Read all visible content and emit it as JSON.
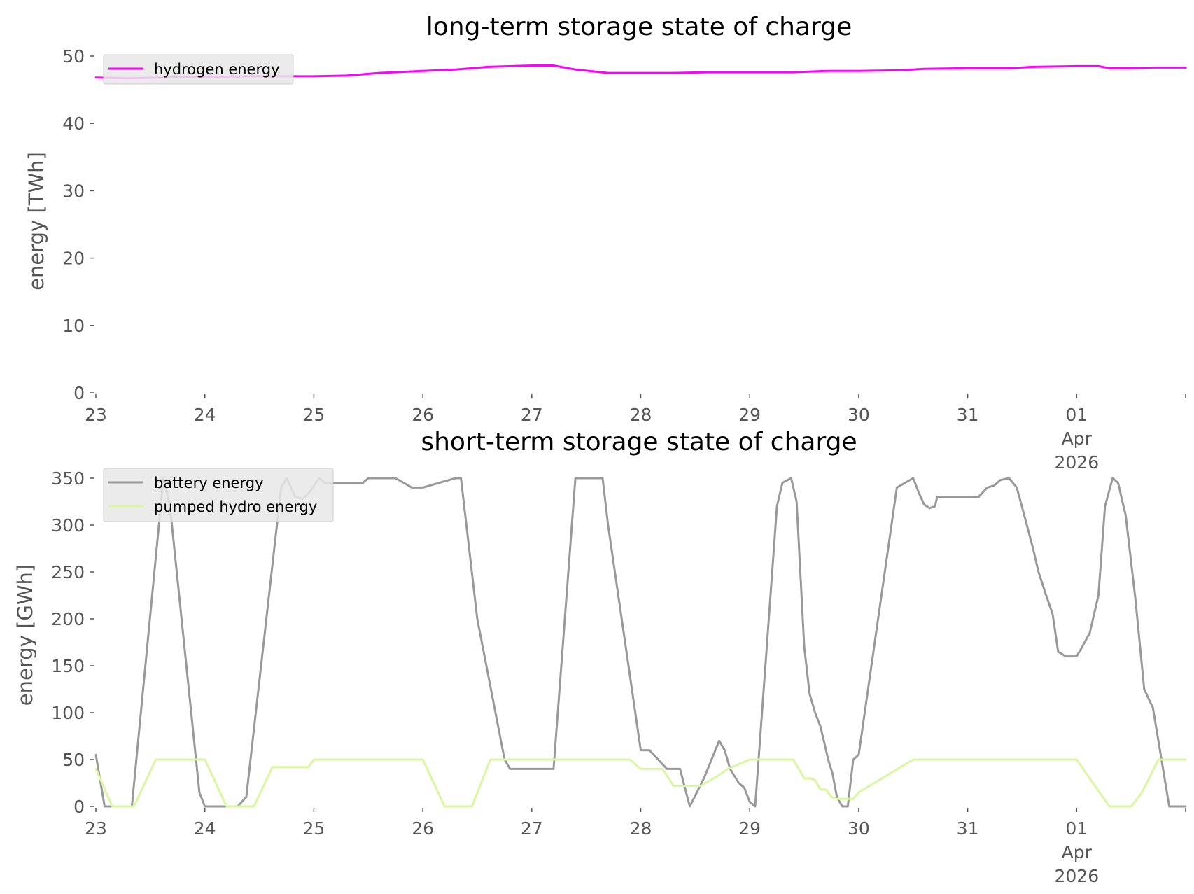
{
  "chart_data": [
    {
      "type": "line",
      "title": "long-term storage state of charge",
      "xlabel": "",
      "ylabel": "energy [TWh]",
      "ylim": [
        0,
        50
      ],
      "yticks": [
        "0",
        "10",
        "20",
        "30",
        "40",
        "50"
      ],
      "x_range": [
        "2026-03-23",
        "2026-04-02"
      ],
      "xticks": [
        {
          "day": 0,
          "label": "23",
          "sub": [
            "",
            ""
          ]
        },
        {
          "day": 1,
          "label": "24",
          "sub": [
            "",
            ""
          ]
        },
        {
          "day": 2,
          "label": "25",
          "sub": [
            "",
            ""
          ]
        },
        {
          "day": 3,
          "label": "26",
          "sub": [
            "",
            ""
          ]
        },
        {
          "day": 4,
          "label": "27",
          "sub": [
            "",
            ""
          ]
        },
        {
          "day": 5,
          "label": "28",
          "sub": [
            "",
            ""
          ]
        },
        {
          "day": 6,
          "label": "29",
          "sub": [
            "",
            ""
          ]
        },
        {
          "day": 7,
          "label": "30",
          "sub": [
            "",
            ""
          ]
        },
        {
          "day": 8,
          "label": "31",
          "sub": [
            "",
            ""
          ]
        },
        {
          "day": 9,
          "label": "01",
          "sub": [
            "Apr",
            "2026"
          ]
        },
        {
          "day": 10,
          "label": "",
          "sub": [
            "",
            ""
          ]
        }
      ],
      "grid": false,
      "legend_position": "top-left",
      "series": [
        {
          "name": "hydrogen energy",
          "color": "#ff00ff",
          "x": [
            0,
            0.3,
            0.6,
            1.0,
            1.5,
            2.0,
            2.3,
            2.6,
            3.0,
            3.3,
            3.6,
            4.0,
            4.2,
            4.4,
            4.7,
            5.0,
            5.3,
            5.6,
            6.0,
            6.4,
            6.7,
            7.0,
            7.4,
            7.6,
            8.0,
            8.4,
            8.6,
            9.0,
            9.2,
            9.3,
            9.5,
            9.7,
            10.0
          ],
          "y": [
            46.8,
            46.7,
            46.8,
            46.9,
            47.0,
            47.0,
            47.1,
            47.5,
            47.8,
            48.0,
            48.4,
            48.6,
            48.6,
            48.0,
            47.5,
            47.5,
            47.5,
            47.6,
            47.6,
            47.6,
            47.8,
            47.8,
            47.9,
            48.1,
            48.2,
            48.2,
            48.4,
            48.5,
            48.5,
            48.2,
            48.2,
            48.3,
            48.3
          ]
        }
      ]
    },
    {
      "type": "line",
      "title": "short-term storage state of charge",
      "xlabel": "",
      "ylabel": "energy [GWh]",
      "ylim": [
        0,
        350
      ],
      "yticks": [
        "0",
        "50",
        "100",
        "150",
        "200",
        "250",
        "300",
        "350"
      ],
      "x_range": [
        "2026-03-23",
        "2026-04-02"
      ],
      "xticks": [
        {
          "day": 0,
          "label": "23",
          "sub": [
            "",
            ""
          ]
        },
        {
          "day": 1,
          "label": "24",
          "sub": [
            "",
            ""
          ]
        },
        {
          "day": 2,
          "label": "25",
          "sub": [
            "",
            ""
          ]
        },
        {
          "day": 3,
          "label": "26",
          "sub": [
            "",
            ""
          ]
        },
        {
          "day": 4,
          "label": "27",
          "sub": [
            "",
            ""
          ]
        },
        {
          "day": 5,
          "label": "28",
          "sub": [
            "",
            ""
          ]
        },
        {
          "day": 6,
          "label": "29",
          "sub": [
            "",
            ""
          ]
        },
        {
          "day": 7,
          "label": "30",
          "sub": [
            "",
            ""
          ]
        },
        {
          "day": 8,
          "label": "31",
          "sub": [
            "",
            ""
          ]
        },
        {
          "day": 9,
          "label": "01",
          "sub": [
            "Apr",
            "2026"
          ]
        },
        {
          "day": 10,
          "label": "",
          "sub": [
            "",
            ""
          ]
        }
      ],
      "grid": false,
      "legend_position": "top-left",
      "series": [
        {
          "name": "battery energy",
          "color": "#999999",
          "x": [
            0,
            0.08,
            0.33,
            0.62,
            0.68,
            0.95,
            1.0,
            1.3,
            1.38,
            1.7,
            1.75,
            1.83,
            1.9,
            1.96,
            2.05,
            2.1,
            2.15,
            2.3,
            2.45,
            2.5,
            2.55,
            2.75,
            2.9,
            3.0,
            3.3,
            3.35,
            3.5,
            3.75,
            3.8,
            4.0,
            4.2,
            4.4,
            4.45,
            4.5,
            4.55,
            4.6,
            4.65,
            4.7,
            5.0,
            5.08,
            5.24,
            5.3,
            5.36,
            5.45,
            5.58,
            5.65,
            5.72,
            5.77,
            5.82,
            5.9,
            5.95,
            6.0,
            6.05,
            6.15,
            6.25,
            6.3,
            6.38,
            6.43,
            6.5,
            6.55,
            6.6,
            6.65,
            6.68,
            6.72,
            6.76,
            6.8,
            6.85,
            6.9,
            6.95,
            7.0,
            7.35,
            7.5,
            7.55,
            7.6,
            7.65,
            7.7,
            7.72,
            7.78,
            7.83,
            7.88,
            7.93,
            8.0,
            8.1,
            8.18,
            8.24,
            8.3,
            8.38,
            8.45,
            8.52,
            8.6,
            8.65,
            8.72,
            8.78,
            8.83,
            8.9,
            9.0,
            9.05,
            9.12,
            9.2,
            9.26,
            9.33,
            9.38,
            9.45,
            9.54,
            9.62,
            9.7,
            9.85,
            10.0
          ],
          "y": [
            55,
            0,
            0,
            350,
            320,
            15,
            0,
            0,
            10,
            340,
            350,
            330,
            328,
            335,
            350,
            345,
            345,
            345,
            345,
            350,
            350,
            350,
            340,
            340,
            350,
            350,
            200,
            50,
            40,
            40,
            40,
            350,
            350,
            350,
            350,
            350,
            350,
            300,
            60,
            60,
            40,
            40,
            40,
            0,
            30,
            50,
            70,
            60,
            40,
            25,
            20,
            5,
            0,
            160,
            320,
            345,
            350,
            325,
            170,
            120,
            100,
            85,
            70,
            50,
            35,
            10,
            0,
            0,
            50,
            55,
            340,
            350,
            335,
            322,
            318,
            320,
            330,
            330,
            330,
            330,
            330,
            330,
            330,
            340,
            342,
            348,
            350,
            340,
            310,
            275,
            250,
            225,
            205,
            165,
            160,
            160,
            170,
            185,
            225,
            320,
            350,
            345,
            310,
            220,
            125,
            105,
            0,
            0
          ]
        },
        {
          "name": "pumped hydro energy",
          "color": "#d9f7a0",
          "x": [
            0,
            0.15,
            0.35,
            0.55,
            0.65,
            1.0,
            1.2,
            1.45,
            1.62,
            1.8,
            1.95,
            2.0,
            2.4,
            3.0,
            3.2,
            3.45,
            3.62,
            3.75,
            4.0,
            4.6,
            4.9,
            5.0,
            5.2,
            5.3,
            5.55,
            5.7,
            5.8,
            6.0,
            6.1,
            6.3,
            6.4,
            6.45,
            6.5,
            6.55,
            6.6,
            6.65,
            6.7,
            6.75,
            6.8,
            6.95,
            7.0,
            7.5,
            8.0,
            9.0,
            9.3,
            9.5,
            9.6,
            9.75,
            9.8,
            9.9,
            10.0
          ],
          "y": [
            40,
            0,
            0,
            50,
            50,
            50,
            0,
            0,
            42,
            42,
            42,
            50,
            50,
            50,
            0,
            0,
            50,
            50,
            50,
            50,
            50,
            40,
            40,
            22,
            22,
            32,
            40,
            50,
            50,
            50,
            50,
            40,
            30,
            30,
            28,
            18,
            18,
            10,
            8,
            8,
            15,
            50,
            50,
            50,
            0,
            0,
            15,
            50,
            50,
            50,
            50
          ]
        }
      ]
    }
  ]
}
